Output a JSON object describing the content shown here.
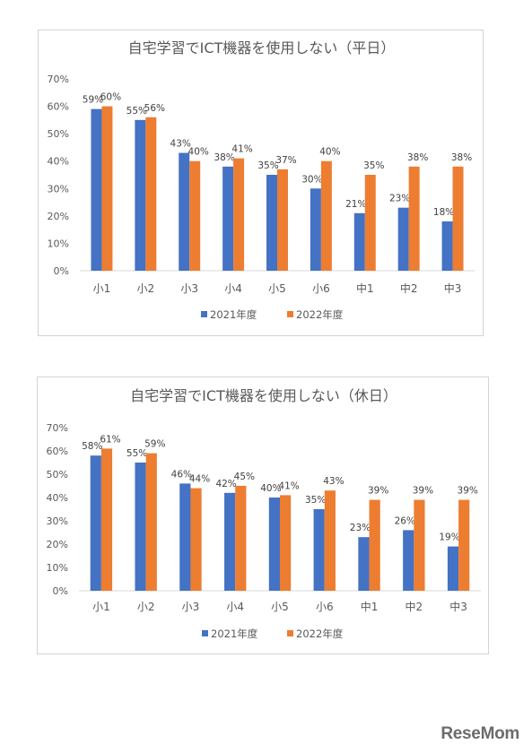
{
  "chart_data": [
    {
      "type": "bar",
      "title": "自宅学習でICT機器を使用しない（平日）",
      "categories": [
        "小1",
        "小2",
        "小3",
        "小4",
        "小5",
        "小6",
        "中1",
        "中2",
        "中3"
      ],
      "series": [
        {
          "name": "2021年度",
          "values": [
            59,
            55,
            43,
            38,
            35,
            30,
            21,
            23,
            18
          ],
          "labels": [
            "59%",
            "55%",
            "43%",
            "38%",
            "35%",
            "30%",
            "21%",
            "23%",
            "18%"
          ]
        },
        {
          "name": "2022年度",
          "values": [
            60,
            56,
            40,
            41,
            37,
            40,
            35,
            38,
            38
          ],
          "labels": [
            "60%",
            "56%",
            "40%",
            "41%",
            "37%",
            "40%",
            "35%",
            "38%",
            "38%"
          ]
        }
      ],
      "ylim": [
        0,
        70
      ],
      "yticks": [
        "0%",
        "10%",
        "20%",
        "30%",
        "40%",
        "50%",
        "60%",
        "70%"
      ],
      "xlabel": "",
      "ylabel": "",
      "legend": "bottom",
      "grid": false
    },
    {
      "type": "bar",
      "title": "自宅学習でICT機器を使用しない（休日）",
      "categories": [
        "小1",
        "小2",
        "小3",
        "小4",
        "小5",
        "小6",
        "中1",
        "中2",
        "中3"
      ],
      "series": [
        {
          "name": "2021年度",
          "values": [
            58,
            55,
            46,
            42,
            40,
            35,
            23,
            26,
            19
          ],
          "labels": [
            "58%",
            "55%",
            "46%",
            "42%",
            "40%",
            "35%",
            "23%",
            "26%",
            "19%"
          ]
        },
        {
          "name": "2022年度",
          "values": [
            61,
            59,
            44,
            45,
            41,
            43,
            39,
            39,
            39
          ],
          "labels": [
            "61%",
            "59%",
            "44%",
            "45%",
            "41%",
            "43%",
            "39%",
            "39%",
            "39%"
          ]
        }
      ],
      "ylim": [
        0,
        70
      ],
      "yticks": [
        "0%",
        "10%",
        "20%",
        "30%",
        "40%",
        "50%",
        "60%",
        "70%"
      ],
      "xlabel": "",
      "ylabel": "",
      "legend": "bottom",
      "grid": false
    }
  ],
  "colors": {
    "series_2021": "#4472c4",
    "series_2022": "#ed7d31"
  },
  "logo": {
    "text": "ReseMom"
  }
}
